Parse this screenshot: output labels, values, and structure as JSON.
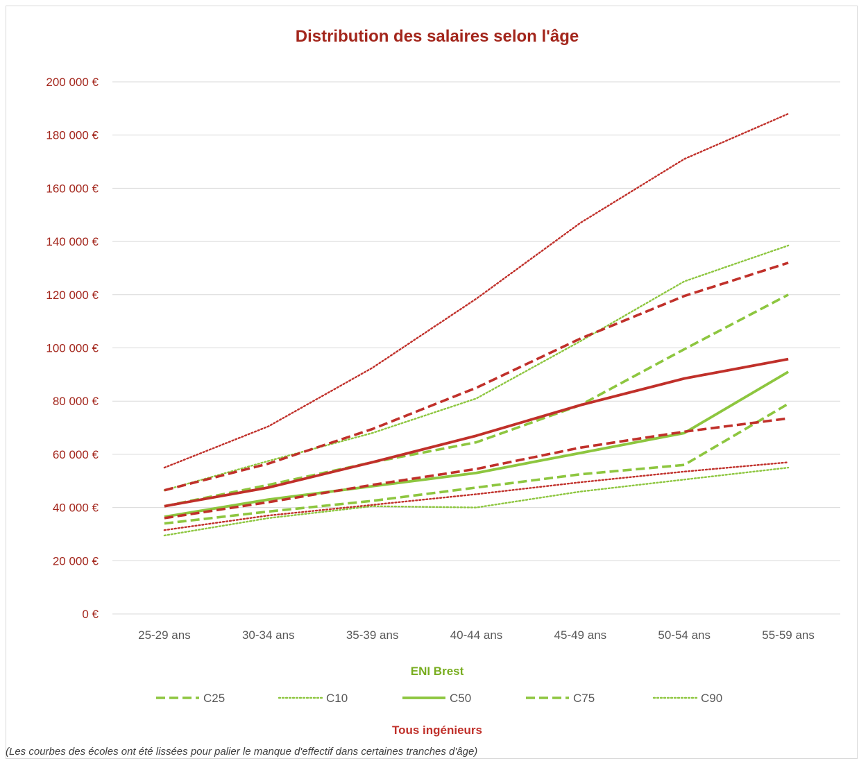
{
  "colors": {
    "green": "#8dc63f",
    "red": "#c0302a",
    "title": "#a3261c",
    "axis_text": "#a3261c",
    "category_text": "#595959",
    "grid": "#d9d9d9"
  },
  "chart_data": {
    "type": "line",
    "title": "Distribution des salaires selon l'âge",
    "xlabel": "",
    "ylabel": "",
    "categories": [
      "25-29 ans",
      "30-34 ans",
      "35-39 ans",
      "40-44 ans",
      "45-49 ans",
      "50-54 ans",
      "55-59 ans"
    ],
    "ylim": [
      0,
      200000
    ],
    "yticks": [
      0,
      20000,
      40000,
      60000,
      80000,
      100000,
      120000,
      140000,
      160000,
      180000,
      200000
    ],
    "ytick_labels": [
      "0 €",
      "20 000 €",
      "40 000 €",
      "60 000 €",
      "80 000 €",
      "100 000 €",
      "120 000 €",
      "140 000 €",
      "160 000 €",
      "180 000 €",
      "200 000 €"
    ],
    "grid": true,
    "legend_titles": {
      "green": "ENI Brest",
      "red": "Tous ingénieurs"
    },
    "legend_placement": "bottom",
    "series": [
      {
        "name": "C25",
        "group": "ENI Brest",
        "color": "#8dc63f",
        "style": "dashed",
        "values": [
          34000,
          38500,
          42500,
          47500,
          52500,
          56000,
          79000
        ]
      },
      {
        "name": "C10",
        "group": "ENI Brest",
        "color": "#8dc63f",
        "style": "dotted",
        "values": [
          29500,
          36000,
          40500,
          40000,
          46000,
          50500,
          55000
        ]
      },
      {
        "name": "C50",
        "group": "ENI Brest",
        "color": "#8dc63f",
        "style": "solid",
        "values": [
          36500,
          43000,
          48000,
          53000,
          60500,
          68000,
          91000
        ]
      },
      {
        "name": "C75",
        "group": "ENI Brest",
        "color": "#8dc63f",
        "style": "dashed",
        "values": [
          40500,
          48500,
          57000,
          64500,
          78500,
          99500,
          120000
        ]
      },
      {
        "name": "C90",
        "group": "ENI Brest",
        "color": "#8dc63f",
        "style": "dotted",
        "values": [
          46500,
          57500,
          68000,
          81000,
          102500,
          125000,
          138500
        ]
      },
      {
        "group": "Tous ingénieurs",
        "color": "#c0302a",
        "style": "dotted",
        "values": [
          31500,
          37000,
          41000,
          45000,
          49500,
          53500,
          57000
        ]
      },
      {
        "group": "Tous ingénieurs",
        "color": "#c0302a",
        "style": "dashed",
        "values": [
          36000,
          42000,
          48500,
          54500,
          62500,
          68500,
          73500
        ]
      },
      {
        "group": "Tous ingénieurs",
        "color": "#c0302a",
        "style": "solid",
        "values": [
          40500,
          47500,
          57000,
          67000,
          78500,
          88500,
          95800
        ]
      },
      {
        "group": "Tous ingénieurs",
        "color": "#c0302a",
        "style": "dashed",
        "values": [
          46500,
          56500,
          69500,
          85000,
          103500,
          119500,
          132000
        ]
      },
      {
        "group": "Tous ingénieurs",
        "color": "#c0302a",
        "style": "dotted",
        "values": [
          55000,
          70500,
          92500,
          118500,
          147000,
          171000,
          188000
        ]
      }
    ],
    "note": "(Les courbes des écoles ont été lissées pour palier le manque d'effectif dans certaines tranches d'âge)"
  }
}
